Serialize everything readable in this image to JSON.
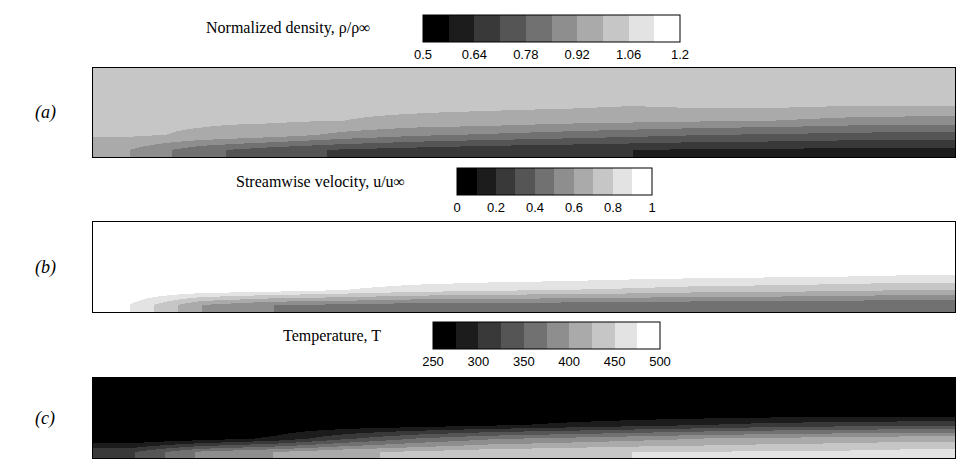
{
  "chart_data": [
    {
      "type": "heatmap",
      "label": "(a)",
      "title": "Normalized density, ρ/ρ∞",
      "zlim": [
        0.5,
        1.2
      ],
      "zticks": [
        0.5,
        0.64,
        0.78,
        0.92,
        1.06,
        1.2
      ],
      "tick_labels": false,
      "z": [
        [
          0.92,
          0.8,
          0.74,
          0.7,
          0.68,
          0.66,
          0.65,
          0.64,
          0.63,
          0.63,
          0.62,
          0.62
        ],
        [
          1.0,
          0.98,
          0.95,
          0.9,
          0.86,
          0.84,
          0.82,
          0.8,
          0.78,
          0.77,
          0.76,
          0.75
        ],
        [
          1.0,
          1.0,
          1.0,
          0.99,
          0.98,
          0.97,
          0.95,
          0.94,
          0.93,
          0.92,
          0.9,
          0.89
        ],
        [
          1.0,
          1.01,
          1.0,
          1.0,
          1.0,
          1.0,
          1.0,
          0.99,
          1.0,
          1.0,
          0.99,
          0.99
        ],
        [
          1.0,
          1.01,
          1.0,
          1.0,
          1.0,
          1.0,
          1.0,
          1.0,
          1.0,
          1.0,
          1.0,
          1.0
        ],
        [
          1.0,
          1.0,
          1.0,
          1.0,
          1.0,
          1.0,
          1.0,
          1.0,
          1.0,
          1.0,
          1.0,
          1.0
        ]
      ]
    },
    {
      "type": "heatmap",
      "label": "(b)",
      "title": "Streamwise velocity, u/u∞",
      "zlim": [
        0,
        1
      ],
      "zticks": [
        0,
        0.2,
        0.4,
        0.6,
        0.8,
        1
      ],
      "tick_labels": false,
      "z": [
        [
          0.9,
          0.6,
          0.5,
          0.48,
          0.45,
          0.45,
          0.44,
          0.43,
          0.42,
          0.42,
          0.41,
          0.4
        ],
        [
          1.0,
          0.98,
          0.95,
          0.9,
          0.85,
          0.82,
          0.8,
          0.78,
          0.75,
          0.74,
          0.72,
          0.7
        ],
        [
          1.0,
          1.0,
          1.0,
          1.0,
          0.99,
          0.98,
          0.97,
          0.95,
          0.94,
          0.93,
          0.92,
          0.9
        ],
        [
          1.0,
          1.0,
          1.0,
          1.0,
          1.0,
          1.0,
          1.0,
          1.0,
          1.0,
          1.0,
          1.0,
          1.0
        ],
        [
          1.0,
          1.0,
          1.0,
          1.0,
          1.0,
          1.0,
          1.0,
          1.0,
          1.0,
          1.0,
          1.0,
          1.0
        ],
        [
          1.0,
          1.0,
          1.0,
          1.0,
          1.0,
          1.0,
          1.0,
          1.0,
          1.0,
          1.0,
          1.0,
          1.0
        ]
      ]
    },
    {
      "type": "heatmap",
      "label": "(c)",
      "title": "Temperature, T",
      "zlim": [
        250,
        500
      ],
      "zticks": [
        250,
        300,
        350,
        400,
        450,
        500
      ],
      "tick_labels": false,
      "z": [
        [
          320,
          380,
          400,
          420,
          430,
          440,
          445,
          450,
          450,
          455,
          455,
          460
        ],
        [
          250,
          260,
          280,
          320,
          350,
          370,
          380,
          390,
          400,
          405,
          410,
          415
        ],
        [
          250,
          250,
          250,
          255,
          260,
          270,
          280,
          290,
          300,
          310,
          315,
          320
        ],
        [
          250,
          250,
          250,
          250,
          250,
          250,
          250,
          250,
          250,
          250,
          250,
          250
        ],
        [
          250,
          250,
          250,
          250,
          250,
          250,
          250,
          250,
          250,
          250,
          250,
          250
        ],
        [
          250,
          250,
          250,
          250,
          250,
          250,
          250,
          250,
          250,
          250,
          250,
          250
        ]
      ]
    }
  ]
}
